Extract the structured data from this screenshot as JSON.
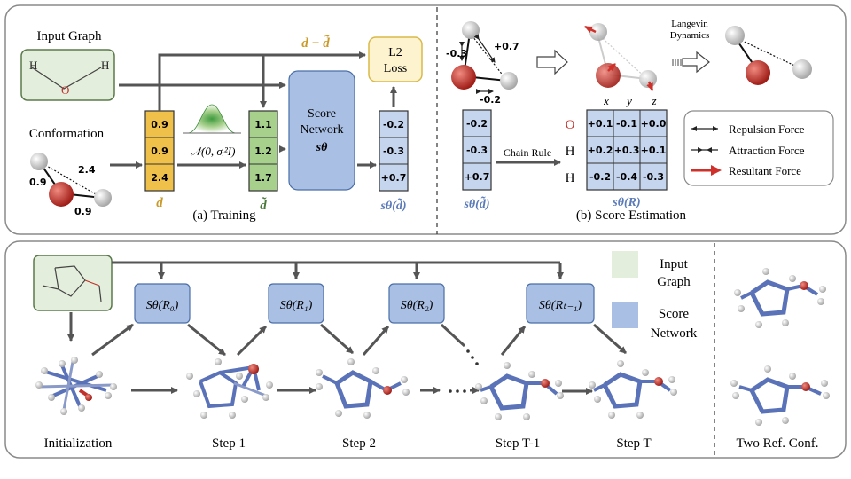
{
  "training": {
    "input_graph_label": "Input Graph",
    "conformation_label": "Conformation",
    "d_vector": [
      "0.9",
      "0.9",
      "2.4"
    ],
    "d_tilde_vector": [
      "1.1",
      "1.2",
      "1.7"
    ],
    "d_label": "d",
    "d_tilde_label": "d̃",
    "noise_label": "𝒩(0, σᵢ²I)",
    "diff_label": "d − d̃",
    "loss_label_line1": "L2",
    "loss_label_line2": "Loss",
    "score_net_line1": "Score",
    "score_net_line2": "Network",
    "score_net_symbol": "sθ",
    "score_output": [
      "-0.2",
      "-0.3",
      "+0.7"
    ],
    "score_output_label": "sθ(d̃)",
    "caption": "(a) Training",
    "mol_edge_labels": [
      "2.4",
      "0.9",
      "0.9"
    ],
    "graph_atoms": [
      "H",
      "O",
      "H"
    ]
  },
  "estimation": {
    "force_labels": [
      "-0.3",
      "+0.7",
      "-0.2"
    ],
    "langevin_line1": "Langevin",
    "langevin_line2": "Dynamics",
    "input_vector": [
      "-0.2",
      "-0.3",
      "+0.7"
    ],
    "input_label": "sθ(d̃)",
    "chain_rule_label": "Chain Rule",
    "matrix_cols": [
      "x",
      "y",
      "z"
    ],
    "matrix_rows": [
      {
        "atom": "O",
        "values": [
          "+0.1",
          "-0.1",
          "+0.0"
        ]
      },
      {
        "atom": "H",
        "values": [
          "+0.2",
          "+0.3",
          "+0.1"
        ]
      },
      {
        "atom": "H",
        "values": [
          "-0.2",
          "-0.4",
          "-0.3"
        ]
      }
    ],
    "matrix_label": "sθ(R)",
    "legend": [
      "Repulsion Force",
      "Attraction Force",
      "Resultant Force"
    ],
    "caption": "(b) Score Estimation"
  },
  "sampling": {
    "score_boxes": [
      "Sθ(R₀)",
      "Sθ(R₁)",
      "Sθ(R₂)",
      "Sθ(Rₜ₋₁)"
    ],
    "legend_input_line1": "Input",
    "legend_input_line2": "Graph",
    "legend_score_line1": "Score",
    "legend_score_line2": "Network",
    "steps": [
      "Initialization",
      "Step 1",
      "Step 2",
      "Step T-1",
      "Step T"
    ],
    "ref_label": "Two Ref. Conf."
  },
  "colors": {
    "panel_border": "#8a8a8a",
    "score_box": "#a9bfe4",
    "score_border": "#4a6fa8",
    "input_graph_fill": "#e4eedc",
    "input_graph_border": "#5a7a4a",
    "d_vector_fill": "#f0c14a",
    "d_tilde_fill": "#a7d08c",
    "vector_blue": "#c5d5ee",
    "loss_fill": "#fdf4cf",
    "loss_border": "#d9b94a",
    "oxygen": "#c0312b",
    "bond": "#5a72b8",
    "arrow_red": "#d0302a"
  }
}
